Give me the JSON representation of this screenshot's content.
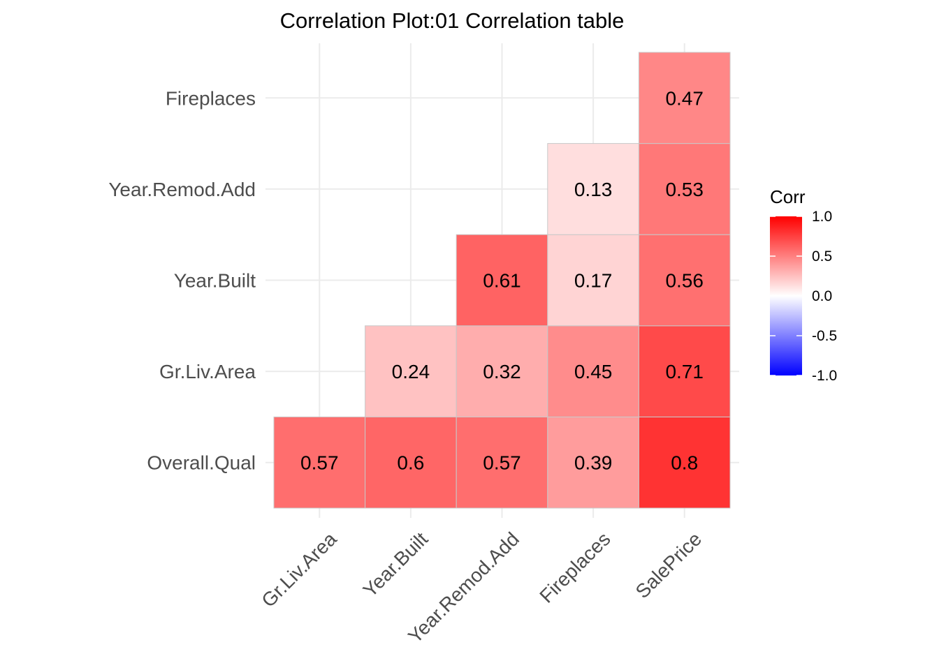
{
  "chart_data": {
    "type": "heatmap",
    "title": "Correlation Plot:01 Correlation table",
    "x_categories": [
      "Gr.Liv.Area",
      "Year.Built",
      "Year.Remod.Add",
      "Fireplaces",
      "SalePrice"
    ],
    "y_categories": [
      "Overall.Qual",
      "Gr.Liv.Area",
      "Year.Built",
      "Year.Remod.Add",
      "Fireplaces"
    ],
    "cells": [
      {
        "x": "Gr.Liv.Area",
        "y": "Overall.Qual",
        "value": 0.57,
        "label": "0.57"
      },
      {
        "x": "Year.Built",
        "y": "Overall.Qual",
        "value": 0.6,
        "label": "0.6"
      },
      {
        "x": "Year.Remod.Add",
        "y": "Overall.Qual",
        "value": 0.57,
        "label": "0.57"
      },
      {
        "x": "Fireplaces",
        "y": "Overall.Qual",
        "value": 0.39,
        "label": "0.39"
      },
      {
        "x": "SalePrice",
        "y": "Overall.Qual",
        "value": 0.8,
        "label": "0.8"
      },
      {
        "x": "Year.Built",
        "y": "Gr.Liv.Area",
        "value": 0.24,
        "label": "0.24"
      },
      {
        "x": "Year.Remod.Add",
        "y": "Gr.Liv.Area",
        "value": 0.32,
        "label": "0.32"
      },
      {
        "x": "Fireplaces",
        "y": "Gr.Liv.Area",
        "value": 0.45,
        "label": "0.45"
      },
      {
        "x": "SalePrice",
        "y": "Gr.Liv.Area",
        "value": 0.71,
        "label": "0.71"
      },
      {
        "x": "Year.Remod.Add",
        "y": "Year.Built",
        "value": 0.61,
        "label": "0.61"
      },
      {
        "x": "Fireplaces",
        "y": "Year.Built",
        "value": 0.17,
        "label": "0.17"
      },
      {
        "x": "SalePrice",
        "y": "Year.Built",
        "value": 0.56,
        "label": "0.56"
      },
      {
        "x": "Fireplaces",
        "y": "Year.Remod.Add",
        "value": 0.13,
        "label": "0.13"
      },
      {
        "x": "SalePrice",
        "y": "Year.Remod.Add",
        "value": 0.53,
        "label": "0.53"
      },
      {
        "x": "SalePrice",
        "y": "Fireplaces",
        "value": 0.47,
        "label": "0.47"
      }
    ],
    "legend": {
      "title": "Corr",
      "range": [
        -1,
        1
      ],
      "ticks": [
        "1.0",
        "0.5",
        "0.0",
        "-0.5",
        "-1.0"
      ],
      "tick_values": [
        1,
        0.5,
        0,
        -0.5,
        -1
      ],
      "low_color": "#0000ff",
      "mid_color": "#ffffff",
      "high_color": "#ff0000",
      "placement": "right"
    },
    "grid": true
  }
}
